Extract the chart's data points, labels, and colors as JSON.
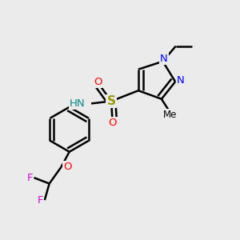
{
  "background_color": "#ebebeb",
  "bond_color": "#000000",
  "bond_width": 1.8,
  "figsize": [
    3.0,
    3.0
  ],
  "dpi": 100,
  "colors": {
    "N": "#0000ff",
    "S": "#999900",
    "O": "#ff0000",
    "F": "#dd00dd",
    "NH": "#008888",
    "C": "#000000"
  }
}
